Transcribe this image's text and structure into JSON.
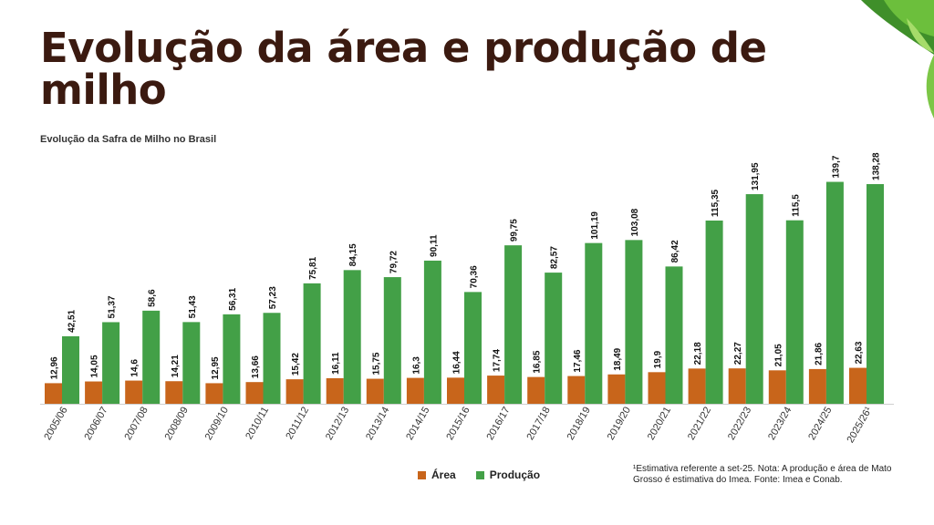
{
  "header": {
    "title": "Evolução da área e produção de milho"
  },
  "chart_data": {
    "type": "bar",
    "title": "Evolução da Safra de Milho no Brasil",
    "categories": [
      "2005/06",
      "2006/07",
      "2007/08",
      "2008/09",
      "2009/10",
      "2010/11",
      "2011/12",
      "2012/13",
      "2013/14",
      "2014/15",
      "2015/16",
      "2016/17",
      "2017/18",
      "2018/19",
      "2019/20",
      "2020/21",
      "2021/22",
      "2022/23",
      "2023/24",
      "2024/25",
      "2025/26¹"
    ],
    "series": [
      {
        "name": "Área",
        "color": "#c8651b",
        "values": [
          12.96,
          14.05,
          14.6,
          14.21,
          12.95,
          13.66,
          15.42,
          16.11,
          15.75,
          16.3,
          16.44,
          17.74,
          16.85,
          17.46,
          18.49,
          19.9,
          22.18,
          22.27,
          21.05,
          21.86,
          22.63
        ],
        "labels": [
          "12,96",
          "14,05",
          "14,6",
          "14,21",
          "12,95",
          "13,66",
          "15,42",
          "16,11",
          "15,75",
          "16,3",
          "16,44",
          "17,74",
          "16,85",
          "17,46",
          "18,49",
          "19,9",
          "22,18",
          "22,27",
          "21,05",
          "21,86",
          "22,63"
        ]
      },
      {
        "name": "Produção",
        "color": "#43a047",
        "values": [
          42.51,
          51.37,
          58.6,
          51.43,
          56.31,
          57.23,
          75.81,
          84.15,
          79.72,
          90.11,
          70.36,
          99.75,
          82.57,
          101.19,
          103.08,
          86.42,
          115.35,
          131.95,
          115.5,
          139.7,
          138.28
        ],
        "labels": [
          "42,51",
          "51,37",
          "58,6",
          "51,43",
          "56,31",
          "57,23",
          "75,81",
          "84,15",
          "79,72",
          "90,11",
          "70,36",
          "99,75",
          "82,57",
          "101,19",
          "103,08",
          "86,42",
          "115,35",
          "131,95",
          "115,5",
          "139,7",
          "138,28"
        ]
      }
    ],
    "legend_position": "bottom",
    "grid": false
  },
  "legend": {
    "area_label": "Área",
    "producao_label": "Produção"
  },
  "footnote": {
    "text": "¹Estimativa referente a set-25. Nota: A produção e área de Mato Grosso é estimativa do Imea. Fonte: Imea e Conab."
  }
}
